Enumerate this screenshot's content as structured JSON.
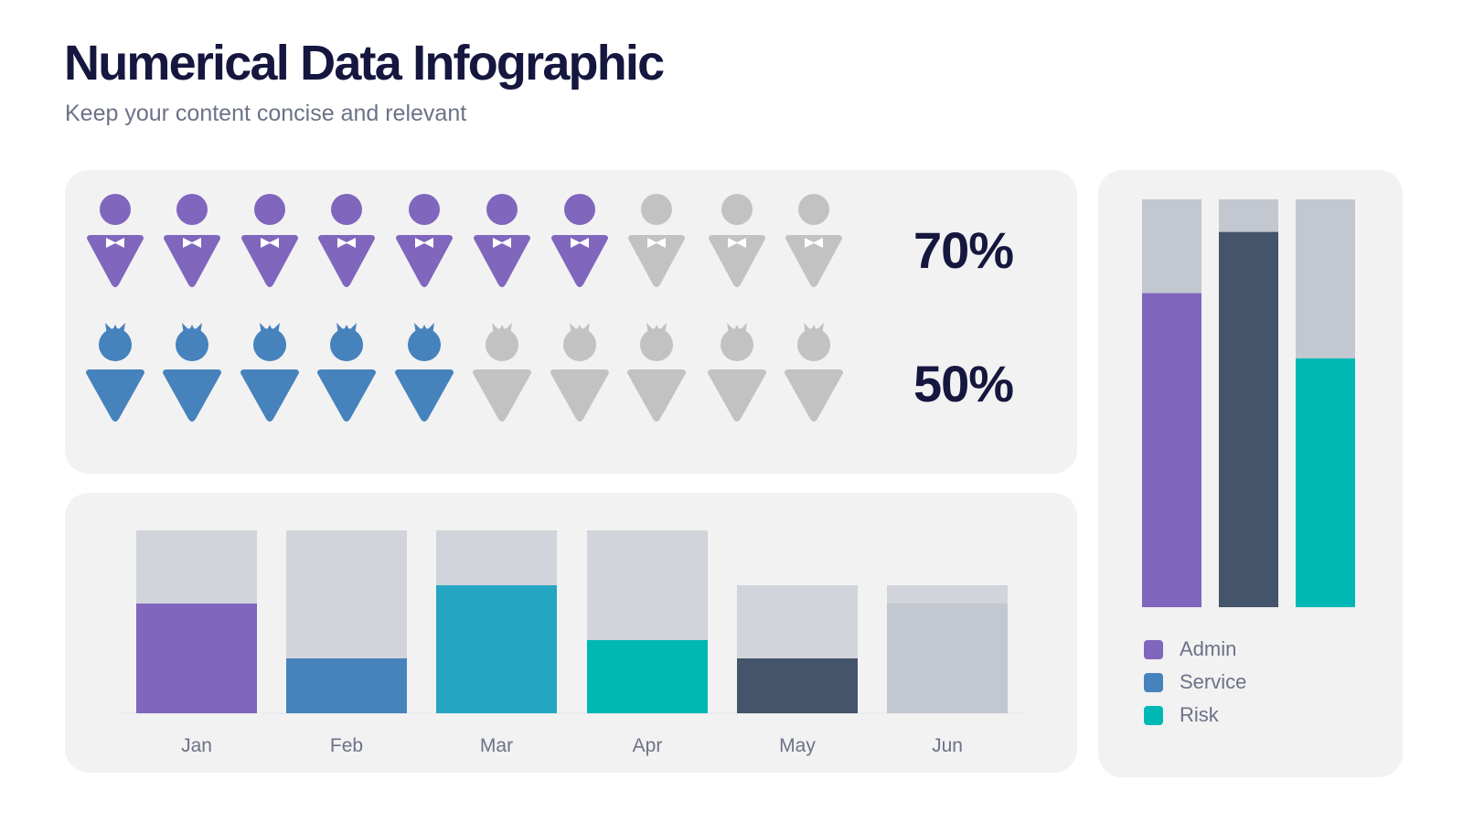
{
  "title": "Numerical Data Infographic",
  "subtitle": "Keep your content concise and relevant",
  "colors": {
    "admin": "#8066bd",
    "service": "#4682bc",
    "risk": "#00b8b3",
    "mar": "#24a6c3",
    "may": "#44546a",
    "slate": "#44546a",
    "grey_icon": "#c2c2c2",
    "grey_track": "#d1d4da",
    "grey_track_dark": "#c3c7cf"
  },
  "icon_rows": [
    {
      "name": "men",
      "icon": "man-icon",
      "percent_label": "70%",
      "filled": 7,
      "total": 10,
      "color_key": "admin"
    },
    {
      "name": "women",
      "icon": "woman-icon",
      "percent_label": "50%",
      "filled": 5,
      "total": 10,
      "color_key": "service"
    }
  ],
  "chart_data": [
    {
      "type": "bar",
      "categories": [
        "Jan",
        "Feb",
        "Mar",
        "Apr",
        "May",
        "Jun"
      ],
      "totals": [
        100,
        100,
        100,
        100,
        70,
        70
      ],
      "values": [
        60,
        30,
        70,
        40,
        30,
        60
      ],
      "bar_colors": [
        "#8066bd",
        "#4682bc",
        "#24a6c3",
        "#00b8b3",
        "#44546a",
        "#c3c7cf"
      ],
      "ylim": [
        0,
        100
      ],
      "grid": false
    },
    {
      "type": "bar",
      "stacked": true,
      "categories": [
        "Admin",
        "Service",
        "Risk"
      ],
      "values": [
        77,
        92,
        61
      ],
      "bar_colors": [
        "#8066bd",
        "#44546a",
        "#00b8b3"
      ],
      "ylim": [
        0,
        100
      ],
      "legend": [
        {
          "label": "Admin",
          "color": "#8066bd"
        },
        {
          "label": "Service",
          "color": "#4682bc"
        },
        {
          "label": "Risk",
          "color": "#00b8b3"
        }
      ],
      "legend_position": "bottom"
    }
  ]
}
